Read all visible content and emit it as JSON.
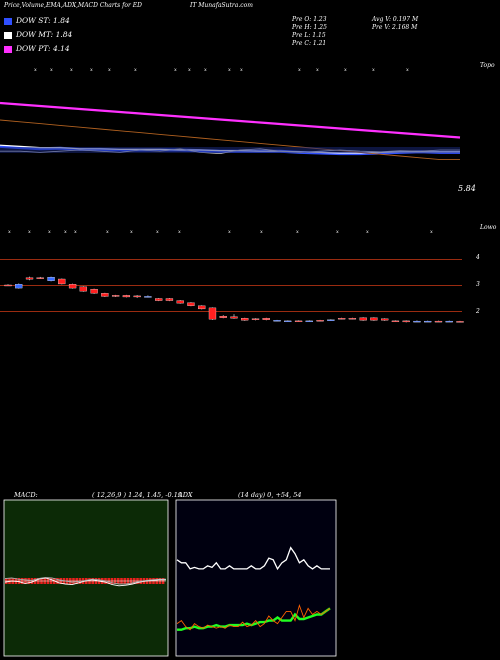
{
  "header": {
    "title_left": "Price,Volume,EMA,ADX,MACD Charts for ED",
    "title_right": "IT MunafaSutra.com"
  },
  "stats": {
    "prev_open": "Pre   O: 1.23",
    "prev_high": "Pre   H: 1.25",
    "prev_low": "Pre   L: 1.15",
    "prev_close": "Pre   C: 1.21",
    "avg_volume": "Avg V: 0.197  M",
    "prev_volume": "Pre   V: 2.168  M"
  },
  "legend": [
    {
      "label": "DOW ST: 1.84",
      "color": "#3050ff"
    },
    {
      "label": "DOW MT: 1.84",
      "color": "#ffffff"
    },
    {
      "label": "DOW PT: 4.14",
      "color": "#ff30ff"
    }
  ],
  "price_panel": {
    "top_label": "Topo",
    "last_value_label": "5.84",
    "tick_marks": [
      "x",
      "x",
      "x",
      "x",
      "x",
      "x",
      "x",
      "x",
      "x",
      "x",
      "x",
      "x",
      "x",
      "x",
      "x",
      "x"
    ]
  },
  "candle_panel": {
    "top_label": "Lowo",
    "axis_labels": [
      "4",
      "3",
      "2"
    ],
    "tick_marks": [
      "x",
      "x",
      "x",
      "x",
      "x",
      "x",
      "x",
      "x",
      "x",
      "x",
      "x",
      "x",
      "x",
      "x",
      "x"
    ]
  },
  "macd_panel": {
    "title": "MACD:",
    "params": "( 12,26,9 ) 1.24,  1.45,  -0.19"
  },
  "adx_panel": {
    "title": "ADX",
    "params": "(14  day) 0,  +54,  54"
  },
  "chart_data": {
    "type": "line",
    "price": {
      "series": [
        {
          "color": "#ff30ff",
          "values": [
            5.35,
            5.34,
            5.33,
            5.32,
            5.31,
            5.3,
            5.29,
            5.28,
            5.27,
            5.26,
            5.25,
            5.24,
            5.23,
            5.22,
            5.21,
            5.2,
            5.19,
            5.18,
            5.17,
            5.16,
            5.15,
            5.14,
            5.13,
            5.12
          ]
        },
        {
          "color": "#3050ff",
          "values": [
            5.9,
            5.88,
            5.86,
            5.87,
            5.85,
            5.85,
            5.84,
            5.84,
            5.84,
            5.84,
            5.83,
            5.82,
            5.82,
            5.82,
            5.82,
            5.8,
            5.79,
            5.78,
            5.78,
            5.79,
            5.8,
            5.81,
            5.8,
            5.8
          ]
        },
        {
          "color": "#ffffff",
          "values": [
            5.92,
            5.9,
            5.88,
            5.88,
            5.86,
            5.86,
            5.85,
            5.85,
            5.85,
            5.84,
            5.84,
            5.83,
            5.83,
            5.82,
            5.82,
            5.81,
            5.8,
            5.79,
            5.79,
            5.8,
            5.81,
            5.81,
            5.81,
            5.81
          ]
        },
        {
          "color": "#b06020",
          "values": [
            5.72,
            5.71,
            5.7,
            5.69,
            5.68,
            5.67,
            5.66,
            5.65,
            5.64,
            5.63,
            5.62,
            5.61,
            5.6,
            5.59,
            5.58,
            5.57,
            5.56,
            5.55,
            5.54,
            5.53,
            5.52,
            5.51,
            5.5,
            5.5
          ]
        },
        {
          "color": "#cccccc",
          "values": [
            5.82,
            5.82,
            5.8,
            5.82,
            5.84,
            5.82,
            5.8,
            5.84,
            5.82,
            5.86,
            5.8,
            5.78,
            5.84,
            5.86,
            5.82,
            5.8,
            5.82,
            5.84,
            5.82,
            5.81,
            5.83,
            5.82,
            5.84,
            5.84
          ]
        }
      ]
    },
    "candles": [
      {
        "o": 3.02,
        "c": 3.0,
        "h": 3.05,
        "l": 2.98
      },
      {
        "o": 2.9,
        "c": 3.05,
        "h": 3.08,
        "l": 2.88
      },
      {
        "o": 3.3,
        "c": 3.24,
        "h": 3.34,
        "l": 3.2
      },
      {
        "o": 3.3,
        "c": 3.28,
        "h": 3.33,
        "l": 3.25
      },
      {
        "o": 3.18,
        "c": 3.32,
        "h": 3.34,
        "l": 3.16
      },
      {
        "o": 3.25,
        "c": 3.06,
        "h": 3.27,
        "l": 3.04
      },
      {
        "o": 3.05,
        "c": 2.9,
        "h": 3.07,
        "l": 2.88
      },
      {
        "o": 2.95,
        "c": 2.78,
        "h": 2.97,
        "l": 2.76
      },
      {
        "o": 2.86,
        "c": 2.7,
        "h": 2.88,
        "l": 2.68
      },
      {
        "o": 2.7,
        "c": 2.58,
        "h": 2.72,
        "l": 2.56
      },
      {
        "o": 2.62,
        "c": 2.58,
        "h": 2.64,
        "l": 2.56
      },
      {
        "o": 2.62,
        "c": 2.56,
        "h": 2.64,
        "l": 2.54
      },
      {
        "o": 2.6,
        "c": 2.56,
        "h": 2.63,
        "l": 2.52
      },
      {
        "o": 2.56,
        "c": 2.58,
        "h": 2.62,
        "l": 2.54
      },
      {
        "o": 2.5,
        "c": 2.42,
        "h": 2.52,
        "l": 2.4
      },
      {
        "o": 2.5,
        "c": 2.42,
        "h": 2.52,
        "l": 2.4
      },
      {
        "o": 2.42,
        "c": 2.32,
        "h": 2.44,
        "l": 2.3
      },
      {
        "o": 2.34,
        "c": 2.22,
        "h": 2.36,
        "l": 2.2
      },
      {
        "o": 2.22,
        "c": 2.1,
        "h": 2.24,
        "l": 2.08
      },
      {
        "o": 2.14,
        "c": 1.7,
        "h": 2.16,
        "l": 1.68
      },
      {
        "o": 1.82,
        "c": 1.76,
        "h": 1.86,
        "l": 1.74
      },
      {
        "o": 1.8,
        "c": 1.74,
        "h": 1.9,
        "l": 1.72
      },
      {
        "o": 1.74,
        "c": 1.66,
        "h": 1.76,
        "l": 1.64
      },
      {
        "o": 1.72,
        "c": 1.68,
        "h": 1.74,
        "l": 1.66
      },
      {
        "o": 1.74,
        "c": 1.68,
        "h": 1.76,
        "l": 1.66
      },
      {
        "o": 1.64,
        "c": 1.66,
        "h": 1.68,
        "l": 1.62
      },
      {
        "o": 1.62,
        "c": 1.64,
        "h": 1.66,
        "l": 1.6
      },
      {
        "o": 1.64,
        "c": 1.62,
        "h": 1.66,
        "l": 1.6
      },
      {
        "o": 1.63,
        "c": 1.64,
        "h": 1.66,
        "l": 1.61
      },
      {
        "o": 1.66,
        "c": 1.64,
        "h": 1.68,
        "l": 1.62
      },
      {
        "o": 1.66,
        "c": 1.68,
        "h": 1.7,
        "l": 1.64
      },
      {
        "o": 1.74,
        "c": 1.72,
        "h": 1.76,
        "l": 1.7
      },
      {
        "o": 1.74,
        "c": 1.72,
        "h": 1.76,
        "l": 1.7
      },
      {
        "o": 1.76,
        "c": 1.66,
        "h": 1.78,
        "l": 1.64
      },
      {
        "o": 1.76,
        "c": 1.66,
        "h": 1.78,
        "l": 1.64
      },
      {
        "o": 1.72,
        "c": 1.66,
        "h": 1.74,
        "l": 1.64
      },
      {
        "o": 1.64,
        "c": 1.62,
        "h": 1.66,
        "l": 1.6
      },
      {
        "o": 1.64,
        "c": 1.6,
        "h": 1.66,
        "l": 1.58
      },
      {
        "o": 1.62,
        "c": 1.63,
        "h": 1.66,
        "l": 1.6
      },
      {
        "o": 1.62,
        "c": 1.63,
        "h": 1.65,
        "l": 1.6
      },
      {
        "o": 1.63,
        "c": 1.62,
        "h": 1.65,
        "l": 1.6
      },
      {
        "o": 1.62,
        "c": 1.63,
        "h": 1.65,
        "l": 1.6
      },
      {
        "o": 1.62,
        "c": 1.61,
        "h": 1.64,
        "l": 1.59
      }
    ],
    "candle_ylim": [
      1.3,
      4.2
    ],
    "candle_lines": [
      4.0,
      3.0,
      2.0
    ],
    "macd": {
      "ylim": [
        -1,
        1
      ],
      "series": [
        {
          "color": "#ffffff",
          "values": [
            -0.02,
            0.0,
            -0.01,
            -0.04,
            -0.02,
            0.03,
            0.05,
            0.02,
            -0.03,
            -0.05,
            -0.06,
            -0.03,
            0.0,
            0.02,
            0.0,
            -0.02,
            -0.06,
            -0.08,
            -0.07,
            -0.05,
            -0.02,
            0.0,
            0.01,
            0.02,
            0.02
          ]
        },
        {
          "color": "#aaaaaa",
          "values": [
            0.04,
            0.05,
            0.03,
            0.02,
            0.01,
            0.04,
            0.06,
            0.05,
            0.02,
            0.0,
            -0.02,
            -0.01,
            0.01,
            0.03,
            0.02,
            0.0,
            -0.03,
            -0.05,
            -0.05,
            -0.03,
            -0.01,
            0.01,
            0.02,
            0.03,
            0.03
          ]
        }
      ],
      "histogram": [
        0.08,
        0.08,
        0.08,
        0.08,
        0.08,
        0.08,
        0.08,
        0.08,
        0.08,
        0.08,
        0.08,
        0.08,
        0.08,
        0.08,
        0.08,
        0.08,
        0.08,
        0.08,
        0.08,
        0.08,
        0.08,
        0.08,
        0.08,
        0.08,
        0.08,
        0.08,
        0.08,
        0.08,
        0.08,
        0.08,
        0.08,
        0.08,
        0.08,
        0.08,
        0.08,
        0.08,
        0.08,
        0.08,
        0.08,
        0.08,
        0.08,
        0.08,
        0.08,
        0.08,
        0.08,
        0.08,
        0.08,
        0.08,
        0.08,
        0.08
      ]
    },
    "adx": {
      "ylim": [
        0,
        100
      ],
      "series": [
        {
          "color": "#ffffff",
          "values": [
            62,
            60,
            60,
            56,
            57,
            56,
            56,
            58,
            57,
            60,
            56,
            56,
            58,
            56,
            56,
            56,
            56,
            58,
            56,
            56,
            58,
            63,
            62,
            56,
            60,
            62,
            70,
            66,
            60,
            62,
            58,
            56,
            58,
            56,
            56,
            56
          ]
        },
        {
          "color": "#20ff20",
          "values": [
            16,
            16,
            17,
            17,
            18,
            17,
            17,
            18,
            18,
            19,
            18,
            18,
            19,
            19,
            19,
            19,
            20,
            19,
            20,
            21,
            21,
            22,
            22,
            24,
            22,
            22,
            22,
            26,
            23,
            23,
            24,
            25,
            26,
            26,
            28,
            30
          ]
        },
        {
          "color": "#ff6000",
          "values": [
            20,
            22,
            18,
            16,
            20,
            18,
            17,
            19,
            18,
            17,
            18,
            17,
            19,
            18,
            18,
            21,
            18,
            19,
            22,
            18,
            20,
            25,
            22,
            20,
            24,
            28,
            28,
            22,
            32,
            24,
            30,
            26,
            28,
            26,
            28,
            30
          ]
        }
      ]
    }
  }
}
